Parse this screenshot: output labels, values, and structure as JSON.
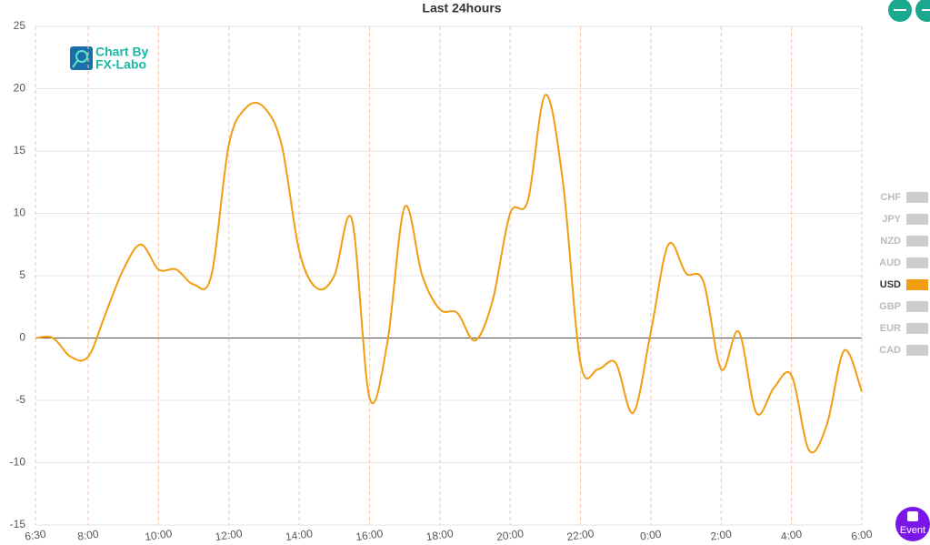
{
  "chart_data": {
    "type": "line",
    "title": "Last 24hours",
    "logo": {
      "line1": "Chart By",
      "line2": "FX-Labo"
    },
    "x": [
      "6:30",
      "7:00",
      "7:30",
      "8:00",
      "8:30",
      "9:00",
      "9:30",
      "10:00",
      "10:30",
      "11:00",
      "11:30",
      "12:00",
      "12:30",
      "13:00",
      "13:30",
      "14:00",
      "14:30",
      "15:00",
      "15:30",
      "16:00",
      "16:30",
      "17:00",
      "17:30",
      "18:00",
      "18:30",
      "19:00",
      "19:30",
      "20:00",
      "20:30",
      "21:00",
      "21:30",
      "22:00",
      "22:30",
      "23:00",
      "23:30",
      "0:00",
      "0:30",
      "1:00",
      "1:30",
      "2:00",
      "2:30",
      "3:00",
      "3:30",
      "4:00",
      "4:30",
      "5:00",
      "5:30",
      "6:00"
    ],
    "series": [
      {
        "name": "CHF",
        "visible": false
      },
      {
        "name": "JPY",
        "visible": false
      },
      {
        "name": "NZD",
        "visible": false
      },
      {
        "name": "AUD",
        "visible": false
      },
      {
        "name": "USD",
        "visible": true,
        "color": "#f39c12",
        "values": [
          0,
          0,
          -1.5,
          -1.5,
          2,
          5.5,
          7.5,
          5.5,
          5.5,
          4.3,
          5,
          15.5,
          18.5,
          18.5,
          15.5,
          7,
          4,
          5,
          9.5,
          -4.8,
          -0.5,
          10.5,
          5,
          2.3,
          2,
          -0.2,
          3,
          10,
          11,
          19.5,
          12.5,
          -2,
          -2.5,
          -2,
          -6,
          0.5,
          7.5,
          5.2,
          4.5,
          -2.5,
          0.5,
          -6,
          -4,
          -3,
          -9,
          -7,
          -1,
          -4.3
        ]
      },
      {
        "name": "GBP",
        "visible": false
      },
      {
        "name": "EUR",
        "visible": false
      },
      {
        "name": "CAD",
        "visible": false
      }
    ],
    "xticks": [
      "6:30",
      "8:00",
      "10:00",
      "12:00",
      "14:00",
      "16:00",
      "18:00",
      "20:00",
      "22:00",
      "0:00",
      "2:00",
      "4:00",
      "6:00"
    ],
    "ylim": [
      -15,
      25
    ],
    "yticks": [
      -15,
      -10,
      -5,
      0,
      5,
      10,
      15,
      20,
      25
    ],
    "grid": true,
    "event_button": "Event"
  }
}
